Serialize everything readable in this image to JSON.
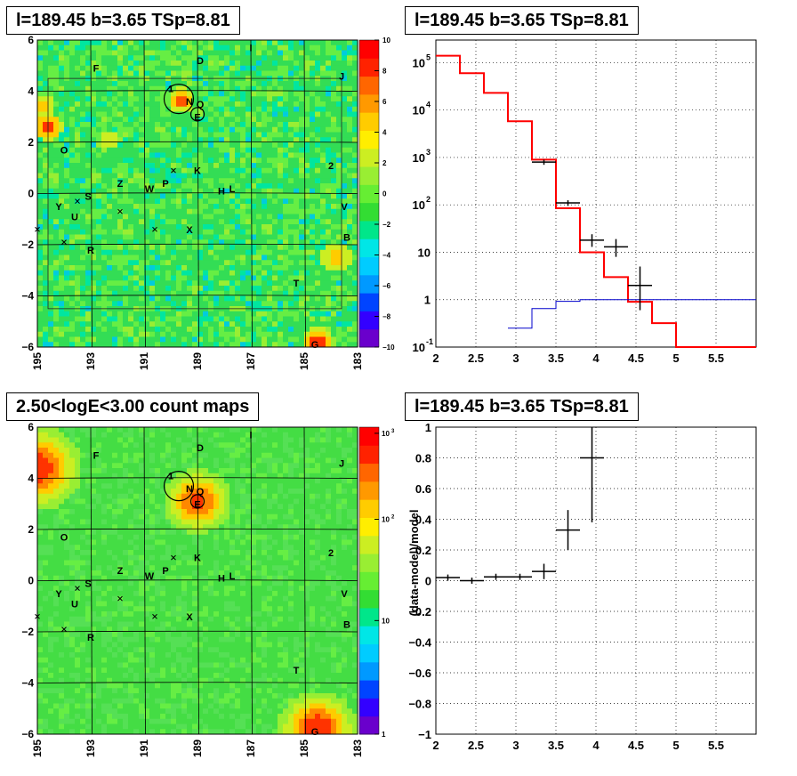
{
  "panels": [
    {
      "title": "l=189.45 b=3.65 TSp=8.81"
    },
    {
      "title": "l=189.45 b=3.65 TSp=8.81"
    },
    {
      "title": "2.50<logE<3.00 count maps"
    },
    {
      "title": "l=189.45 b=3.65 TSp=8.81"
    }
  ],
  "chart_data": [
    {
      "type": "heatmap",
      "title": "l=189.45 b=3.65 TSp=8.81",
      "x_ticks": [
        "195",
        "193",
        "191",
        "189",
        "187",
        "185",
        "183"
      ],
      "y_ticks": [
        "6",
        "4",
        "2",
        "0",
        "−2",
        "−4",
        "−6"
      ],
      "xlim": [
        195,
        183
      ],
      "ylim": [
        -6,
        6
      ],
      "colorbar_ticks": [
        "10",
        "8",
        "6",
        "4",
        "2",
        "0",
        "−2",
        "−4",
        "−6",
        "−8",
        "−10"
      ],
      "colorbar_range": [
        -10,
        10
      ],
      "grid": true,
      "sources": [
        {
          "label": "F",
          "l": 192.8,
          "b": 4.9
        },
        {
          "label": "D",
          "l": 188.9,
          "b": 5.2
        },
        {
          "label": "I",
          "l": 187.0,
          "b": 5.7
        },
        {
          "label": "J",
          "l": 183.6,
          "b": 4.6
        },
        {
          "label": "1",
          "l": 190.0,
          "b": 4.1
        },
        {
          "label": "N",
          "l": 189.3,
          "b": 3.6
        },
        {
          "label": "Q",
          "l": 188.9,
          "b": 3.5
        },
        {
          "label": "E",
          "l": 189.0,
          "b": 3.0
        },
        {
          "label": "O",
          "l": 194.0,
          "b": 1.7
        },
        {
          "label": "2",
          "l": 184.0,
          "b": 1.1
        },
        {
          "label": "K",
          "l": 189.0,
          "b": 0.9
        },
        {
          "label": "Z",
          "l": 191.9,
          "b": 0.4
        },
        {
          "label": "W",
          "l": 190.8,
          "b": 0.2
        },
        {
          "label": "P",
          "l": 190.2,
          "b": 0.4
        },
        {
          "label": "H",
          "l": 188.1,
          "b": 0.1
        },
        {
          "label": "L",
          "l": 187.7,
          "b": 0.2
        },
        {
          "label": "S",
          "l": 193.1,
          "b": -0.1
        },
        {
          "label": "Y",
          "l": 194.2,
          "b": -0.5
        },
        {
          "label": "V",
          "l": 183.5,
          "b": -0.5
        },
        {
          "label": "U",
          "l": 193.6,
          "b": -0.9
        },
        {
          "label": "X",
          "l": 189.3,
          "b": -1.4
        },
        {
          "label": "B",
          "l": 183.4,
          "b": -1.7
        },
        {
          "label": "R",
          "l": 193.0,
          "b": -2.2
        },
        {
          "label": "T",
          "l": 185.3,
          "b": -3.5
        },
        {
          "label": "G",
          "l": 184.6,
          "b": -5.9
        }
      ],
      "crosses": [
        [
          189.9,
          0.9
        ],
        [
          193.5,
          -0.3
        ],
        [
          191.9,
          -0.7
        ],
        [
          190.6,
          -1.4
        ],
        [
          194.0,
          -1.9
        ],
        [
          195.0,
          -1.4
        ]
      ],
      "circles": [
        [
          189.7,
          3.7,
          0.55
        ],
        [
          189.0,
          3.1,
          0.25
        ]
      ],
      "roi": [
        194.6,
        183.6,
        -4.5,
        4.5
      ]
    },
    {
      "type": "line",
      "title": "l=189.45 b=3.65 TSp=8.81",
      "xlabel": "",
      "ylabel": "",
      "xlim": [
        2,
        6
      ],
      "ylim": [
        0.1,
        300000
      ],
      "y_scale": "log",
      "x_ticks": [
        "2",
        "2.5",
        "3",
        "3.5",
        "4",
        "4.5",
        "5",
        "5.5"
      ],
      "y_ticks": [
        "10^-1",
        "1",
        "10",
        "10^2",
        "10^3",
        "10^4",
        "10^5"
      ],
      "grid": true,
      "series": [
        {
          "kind": "step",
          "color": "#ff0000",
          "edges": [
            2.0,
            2.3,
            2.6,
            2.9,
            3.2,
            3.5,
            3.8,
            4.1,
            4.4,
            4.7,
            5.0,
            6.0
          ],
          "values": [
            140000,
            60000,
            23000,
            5800,
            900,
            85,
            10,
            3,
            0.9,
            0.32,
            0.1
          ]
        },
        {
          "kind": "step",
          "color": "#0000cc",
          "edges": [
            2.9,
            3.2,
            3.5,
            3.8,
            4.1,
            6.0
          ],
          "values": [
            0.25,
            0.65,
            0.92,
            1.0,
            1.0
          ]
        },
        {
          "kind": "points",
          "color": "#000000",
          "x": [
            3.35,
            3.65,
            3.95,
            4.25,
            4.55
          ],
          "y": [
            800,
            110,
            18,
            13,
            2
          ],
          "xerr": 0.15,
          "ylo": [
            700,
            95,
            13,
            8,
            0.6
          ],
          "yhi": [
            900,
            125,
            24,
            19,
            5
          ]
        }
      ]
    },
    {
      "type": "heatmap",
      "title": "2.50<logE<3.00 count maps",
      "x_ticks": [
        "195",
        "193",
        "191",
        "189",
        "187",
        "185",
        "183"
      ],
      "y_ticks": [
        "6",
        "4",
        "2",
        "0",
        "−2",
        "−4",
        "−6"
      ],
      "xlim": [
        195,
        183
      ],
      "ylim": [
        -6,
        6
      ],
      "colorbar_ticks": [
        "1",
        "10",
        "10^2",
        "10^3"
      ],
      "colorbar_scale": "log",
      "grid": true
    },
    {
      "type": "scatter",
      "title": "l=189.45 b=3.65 TSp=8.81",
      "ylabel": "(data-model)/model",
      "xlim": [
        2,
        6
      ],
      "ylim": [
        -1,
        1
      ],
      "x_ticks": [
        "2",
        "2.5",
        "3",
        "3.5",
        "4",
        "4.5",
        "5",
        "5.5"
      ],
      "y_ticks": [
        "−1",
        "−0.8",
        "−0.6",
        "−0.4",
        "−0.2",
        "0",
        "0.2",
        "0.4",
        "0.6",
        "0.8",
        "1"
      ],
      "grid": true,
      "points": {
        "x": [
          2.15,
          2.45,
          2.75,
          3.05,
          3.35,
          3.65,
          3.95
        ],
        "y": [
          0.02,
          0.0,
          0.025,
          0.025,
          0.06,
          0.33,
          0.8
        ],
        "xerr": 0.15,
        "yerr": [
          0.02,
          0.02,
          0.02,
          0.02,
          0.05,
          0.13,
          0.42
        ]
      }
    }
  ]
}
